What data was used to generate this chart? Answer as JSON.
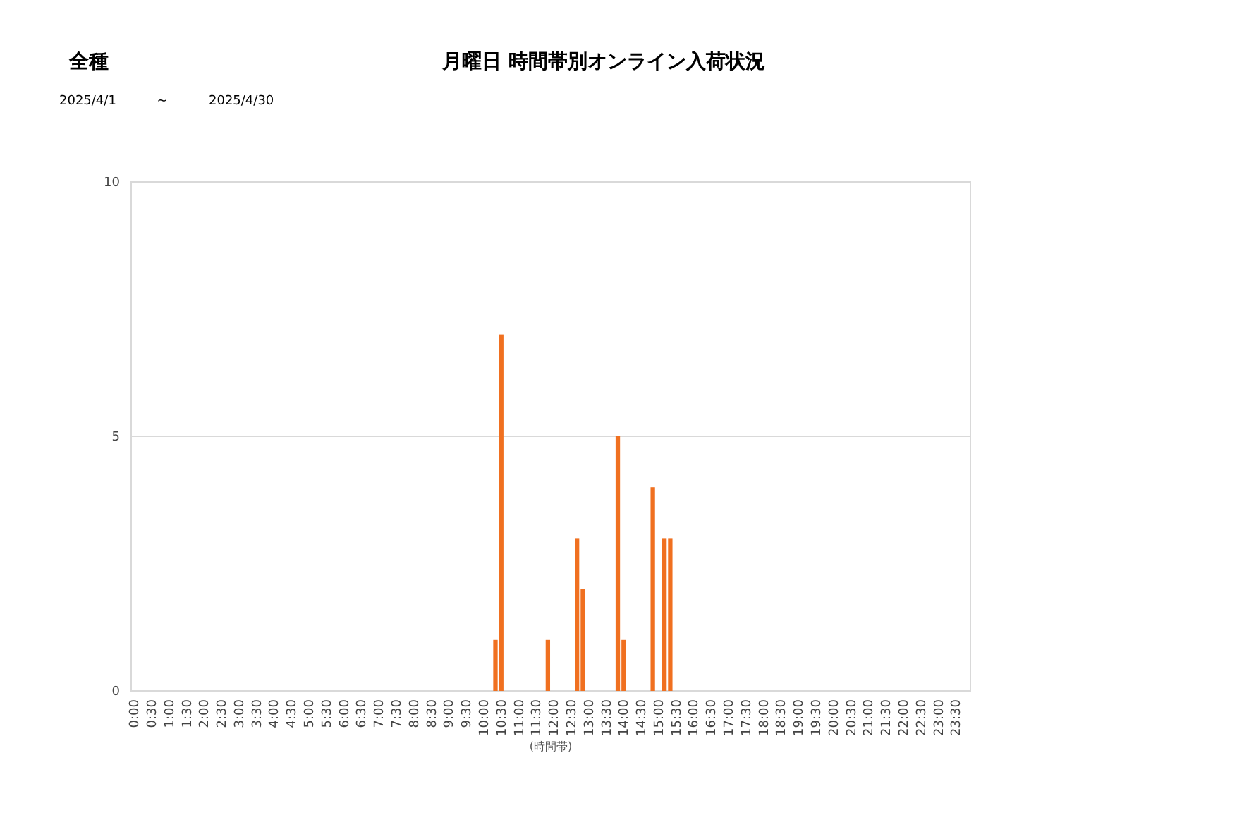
{
  "chart_data": {
    "type": "bar",
    "title": "月曜日 時間帯別オンライン入荷状況",
    "annotations": [
      "全種",
      "2025/4/1",
      "~",
      "2025/4/30"
    ],
    "xlabel": "(時間帯)",
    "categories": [
      "0:00",
      null,
      null,
      "0:30",
      null,
      null,
      "1:00",
      null,
      null,
      "1:30",
      null,
      null,
      "2:00",
      null,
      null,
      "2:30",
      null,
      null,
      "3:00",
      null,
      null,
      "3:30",
      null,
      null,
      "4:00",
      null,
      null,
      "4:30",
      null,
      null,
      "5:00",
      null,
      null,
      "5:30",
      null,
      null,
      "6:00",
      null,
      null,
      "6:30",
      null,
      null,
      "7:00",
      null,
      null,
      "7:30",
      null,
      null,
      "8:00",
      null,
      null,
      "8:30",
      null,
      null,
      "9:00",
      null,
      null,
      "9:30",
      null,
      null,
      "10:00",
      null,
      null,
      "10:30",
      null,
      null,
      "11:00",
      null,
      null,
      "11:30",
      null,
      null,
      "12:00",
      null,
      null,
      "12:30",
      null,
      null,
      "13:00",
      null,
      null,
      "13:30",
      null,
      null,
      "14:00",
      null,
      null,
      "14:30",
      null,
      null,
      "15:00",
      null,
      null,
      "15:30",
      null,
      null,
      "16:00",
      null,
      null,
      "16:30",
      null,
      null,
      "17:00",
      null,
      null,
      "17:30",
      null,
      null,
      "18:00",
      null,
      null,
      "18:30",
      null,
      null,
      "19:00",
      null,
      null,
      "19:30",
      null,
      null,
      "20:00",
      null,
      null,
      "20:30",
      null,
      null,
      "21:00",
      null,
      null,
      "21:30",
      null,
      null,
      "22:00",
      null,
      null,
      "22:30",
      null,
      null,
      "23:00",
      null,
      null,
      "23:30",
      null,
      null
    ],
    "values": [
      0,
      0,
      0,
      0,
      0,
      0,
      0,
      0,
      0,
      0,
      0,
      0,
      0,
      0,
      0,
      0,
      0,
      0,
      0,
      0,
      0,
      0,
      0,
      0,
      0,
      0,
      0,
      0,
      0,
      0,
      0,
      0,
      0,
      0,
      0,
      0,
      0,
      0,
      0,
      0,
      0,
      0,
      0,
      0,
      0,
      0,
      0,
      0,
      0,
      0,
      0,
      0,
      0,
      0,
      0,
      0,
      0,
      0,
      0,
      0,
      0,
      0,
      1,
      7,
      0,
      0,
      0,
      0,
      0,
      0,
      0,
      1,
      0,
      0,
      0,
      0,
      3,
      2,
      0,
      0,
      0,
      0,
      0,
      5,
      1,
      0,
      0,
      0,
      0,
      4,
      0,
      3,
      3,
      0,
      0,
      0,
      0,
      0,
      0,
      0,
      0,
      0,
      0,
      0,
      0,
      0,
      0,
      0,
      0,
      0,
      0,
      0,
      0,
      0,
      0,
      0,
      0,
      0,
      0,
      0,
      0,
      0,
      0,
      0,
      0,
      0,
      0,
      0,
      0,
      0,
      0,
      0,
      0,
      0,
      0,
      0,
      0,
      0,
      0,
      0,
      0,
      0,
      0,
      0
    ],
    "color": "#f07020",
    "ylim": [
      0,
      10
    ],
    "yticks": [
      0,
      5,
      10
    ],
    "grid": "y"
  }
}
